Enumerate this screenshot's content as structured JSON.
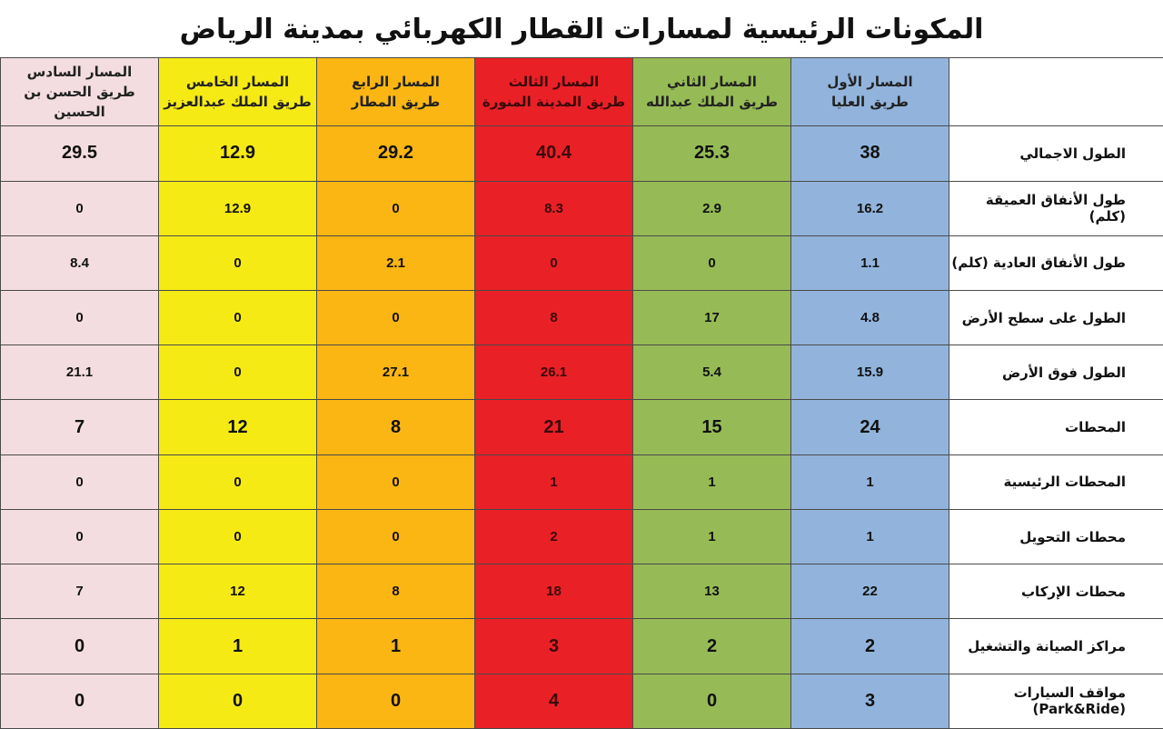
{
  "title": "المكونات الرئيسية لمسارات القطار الكهربائي بمدينة الرياض",
  "routes": [
    {
      "line1": "المسار الأول",
      "line2": "طريق العليا",
      "color": "#92b4dc"
    },
    {
      "line1": "المسار الثاني",
      "line2": "طريق الملك عبدالله",
      "color": "#96bb56"
    },
    {
      "line1": "المسار الثالث",
      "line2": "طريق المدينة المنورة",
      "color": "#ea2027"
    },
    {
      "line1": "المسار الرابع",
      "line2": "طريق المطار",
      "color": "#fbb613"
    },
    {
      "line1": "المسار الخامس",
      "line2": "طريق الملك عبدالعزيز",
      "color": "#f6ea15"
    },
    {
      "line1": "المسار السادس",
      "line2": "طريق الحسن بن الحسين",
      "color": "#f4dde0"
    }
  ],
  "rows": [
    {
      "label": "الطول الاجمالي",
      "values": [
        "38",
        "25.3",
        "40.4",
        "29.2",
        "12.9",
        "29.5"
      ]
    },
    {
      "label": "طول الأنفاق العميقة (كلم)",
      "values": [
        "16.2",
        "2.9",
        "8.3",
        "0",
        "12.9",
        "0"
      ]
    },
    {
      "label": "طول الأنفاق العادية (كلم)",
      "values": [
        "1.1",
        "0",
        "0",
        "2.1",
        "0",
        "8.4"
      ]
    },
    {
      "label": "الطول على سطح الأرض",
      "values": [
        "4.8",
        "17",
        "8",
        "0",
        "0",
        "0"
      ]
    },
    {
      "label": "الطول فوق الأرض",
      "values": [
        "15.9",
        "5.4",
        "26.1",
        "27.1",
        "0",
        "21.1"
      ]
    },
    {
      "label": "المحطات",
      "values": [
        "24",
        "15",
        "21",
        "8",
        "12",
        "7"
      ]
    },
    {
      "label": "المحطات الرئيسية",
      "values": [
        "1",
        "1",
        "1",
        "0",
        "0",
        "0"
      ]
    },
    {
      "label": "محطات التحويل",
      "values": [
        "1",
        "1",
        "2",
        "0",
        "0",
        "0"
      ]
    },
    {
      "label": "محطات الإركاب",
      "values": [
        "22",
        "13",
        "18",
        "8",
        "12",
        "7"
      ]
    },
    {
      "label": "مراكز الصيانة والتشغيل",
      "values": [
        "2",
        "2",
        "3",
        "1",
        "1",
        "0"
      ]
    },
    {
      "label": "مواقف السيارات (Park&Ride)",
      "values": [
        "3",
        "0",
        "4",
        "0",
        "0",
        "0"
      ]
    }
  ]
}
